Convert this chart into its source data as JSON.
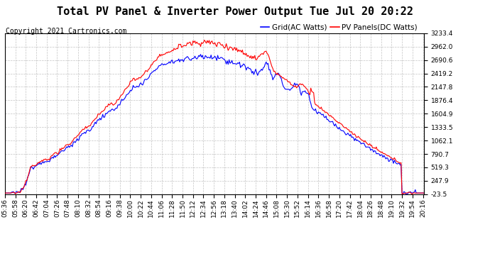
{
  "title": "Total PV Panel & Inverter Power Output Tue Jul 20 20:22",
  "copyright": "Copyright 2021 Cartronics.com",
  "legend_grid": "Grid(AC Watts)",
  "legend_pv": "PV Panels(DC Watts)",
  "grid_color": "#0000ff",
  "pv_color": "#ff0000",
  "background_color": "#ffffff",
  "plot_bg_color": "#ffffff",
  "grid_line_color": "#aaaaaa",
  "yticks": [
    3233.4,
    2962.0,
    2690.6,
    2419.2,
    2147.8,
    1876.4,
    1604.9,
    1333.5,
    1062.1,
    790.7,
    519.3,
    247.9,
    -23.5
  ],
  "ymin": -23.5,
  "ymax": 3233.4,
  "title_fontsize": 11,
  "copyright_fontsize": 7,
  "legend_fontsize": 7.5,
  "tick_fontsize": 6.5,
  "linewidth": 0.8
}
